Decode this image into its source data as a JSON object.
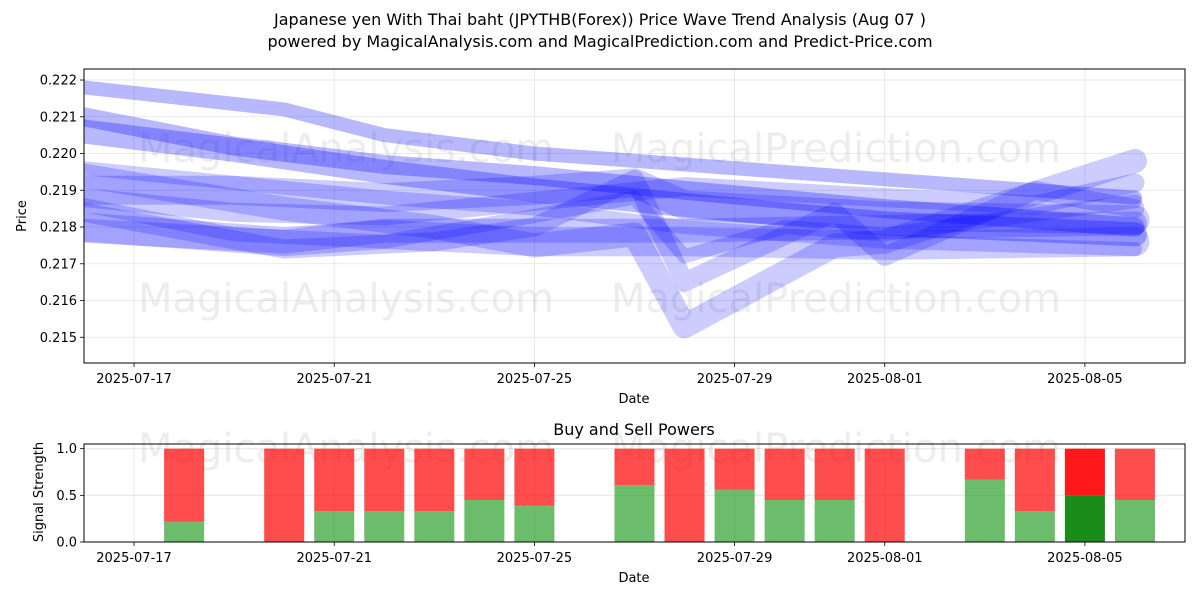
{
  "header": {
    "title": "Japanese yen With Thai baht (JPYTHB(Forex)) Price Wave Trend Analysis (Aug 07 )",
    "subtitle": "powered by MagicalAnalysis.com and MagicalPrediction.com and Predict-Price.com"
  },
  "watermarks": [
    "MagicalAnalysis.com",
    "MagicalPrediction.com"
  ],
  "colors": {
    "wave": "#0000ff",
    "buy": "#2ca02c",
    "sell": "#ff0000",
    "grid": "#b0b0b0"
  },
  "chart_data": [
    {
      "type": "area",
      "xlabel": "Date",
      "ylabel": "Price",
      "xlim": [
        "2025-07-16",
        "2025-08-07"
      ],
      "ylim": [
        0.2143,
        0.2223
      ],
      "x_ticks": [
        "2025-07-17",
        "2025-07-21",
        "2025-07-25",
        "2025-07-29",
        "2025-08-01",
        "2025-08-05"
      ],
      "y_ticks": [
        "0.215",
        "0.216",
        "0.217",
        "0.218",
        "0.219",
        "0.220",
        "0.221",
        "0.222"
      ],
      "grid": true,
      "series": [
        {
          "x": [
            "2025-07-16",
            "2025-07-20",
            "2025-07-22",
            "2025-07-25",
            "2025-07-28",
            "2025-08-01",
            "2025-08-06"
          ],
          "values": [
            0.2218,
            0.2212,
            0.2205,
            0.22,
            0.2197,
            0.2193,
            0.2188
          ]
        },
        {
          "x": [
            "2025-07-16",
            "2025-07-19",
            "2025-07-22",
            "2025-07-25",
            "2025-07-28",
            "2025-08-01",
            "2025-08-06"
          ],
          "values": [
            0.221,
            0.2202,
            0.2197,
            0.2194,
            0.219,
            0.2185,
            0.218
          ]
        },
        {
          "x": [
            "2025-07-16",
            "2025-07-19",
            "2025-07-22",
            "2025-07-25",
            "2025-07-28",
            "2025-08-01",
            "2025-08-06"
          ],
          "values": [
            0.2206,
            0.2201,
            0.2195,
            0.219,
            0.2186,
            0.2181,
            0.2178
          ]
        },
        {
          "x": [
            "2025-07-16",
            "2025-07-19",
            "2025-07-22",
            "2025-07-25",
            "2025-07-27",
            "2025-07-28",
            "2025-08-01",
            "2025-08-06"
          ],
          "values": [
            0.219,
            0.219,
            0.2188,
            0.219,
            0.2192,
            0.2186,
            0.2183,
            0.2182
          ]
        },
        {
          "x": [
            "2025-07-16",
            "2025-07-19",
            "2025-07-22",
            "2025-07-25",
            "2025-07-27",
            "2025-07-28",
            "2025-07-30",
            "2025-08-01",
            "2025-08-06"
          ],
          "values": [
            0.2186,
            0.2178,
            0.2176,
            0.2183,
            0.2188,
            0.2172,
            0.218,
            0.2178,
            0.2187
          ]
        },
        {
          "x": [
            "2025-07-16",
            "2025-07-20",
            "2025-07-23",
            "2025-07-25",
            "2025-07-27",
            "2025-07-28",
            "2025-07-31",
            "2025-08-01",
            "2025-08-04",
            "2025-08-06"
          ],
          "values": [
            0.2184,
            0.2174,
            0.2176,
            0.218,
            0.2193,
            0.2165,
            0.2184,
            0.2172,
            0.219,
            0.2185
          ]
        },
        {
          "x": [
            "2025-07-16",
            "2025-07-20",
            "2025-07-23",
            "2025-07-25",
            "2025-07-27",
            "2025-07-28",
            "2025-07-31",
            "2025-08-01",
            "2025-08-06"
          ],
          "values": [
            0.2194,
            0.2185,
            0.218,
            0.2175,
            0.2178,
            0.2153,
            0.2175,
            0.2176,
            0.2198
          ]
        },
        {
          "x": [
            "2025-07-16",
            "2025-07-20",
            "2025-07-22",
            "2025-07-25",
            "2025-07-28",
            "2025-08-01",
            "2025-08-06"
          ],
          "values": [
            0.218,
            0.2176,
            0.2178,
            0.2176,
            0.2176,
            0.2175,
            0.2176
          ]
        },
        {
          "x": [
            "2025-07-16",
            "2025-07-19",
            "2025-07-22",
            "2025-07-25",
            "2025-07-28",
            "2025-08-01",
            "2025-08-06"
          ],
          "values": [
            0.2196,
            0.2192,
            0.2188,
            0.2185,
            0.218,
            0.2176,
            0.2174
          ]
        },
        {
          "x": [
            "2025-07-16",
            "2025-07-19",
            "2025-07-22",
            "2025-07-25",
            "2025-07-28",
            "2025-08-01",
            "2025-08-04",
            "2025-08-06"
          ],
          "values": [
            0.2188,
            0.2184,
            0.2183,
            0.2187,
            0.2191,
            0.2188,
            0.2186,
            0.2192
          ]
        },
        {
          "x": [
            "2025-07-16",
            "2025-07-20",
            "2025-07-22",
            "2025-07-25",
            "2025-07-28",
            "2025-08-01",
            "2025-08-06"
          ],
          "values": [
            0.2179,
            0.2176,
            0.2179,
            0.2179,
            0.2179,
            0.218,
            0.2181
          ]
        }
      ]
    },
    {
      "type": "bar",
      "title": "Buy and Sell Powers",
      "xlabel": "Date",
      "ylabel": "Signal Strength",
      "xlim": [
        "2025-07-16",
        "2025-08-07"
      ],
      "ylim": [
        0,
        1.05
      ],
      "x_ticks": [
        "2025-07-17",
        "2025-07-21",
        "2025-07-25",
        "2025-07-29",
        "2025-08-01",
        "2025-08-05"
      ],
      "y_ticks": [
        "0.0",
        "0.5",
        "1.0"
      ],
      "categories": [
        "2025-07-18",
        "2025-07-20",
        "2025-07-21",
        "2025-07-22",
        "2025-07-23",
        "2025-07-24",
        "2025-07-25",
        "2025-07-27",
        "2025-07-28",
        "2025-07-29",
        "2025-07-30",
        "2025-07-31",
        "2025-08-01",
        "2025-08-03",
        "2025-08-04",
        "2025-08-05",
        "2025-08-06"
      ],
      "series": [
        {
          "name": "Buy",
          "values": [
            0.22,
            0.0,
            0.33,
            0.33,
            0.33,
            0.45,
            0.39,
            0.61,
            0.0,
            0.56,
            0.45,
            0.45,
            0.0,
            0.67,
            0.33,
            0.5,
            0.45
          ]
        },
        {
          "name": "Sell",
          "values": [
            0.78,
            1.0,
            0.67,
            0.67,
            0.67,
            0.55,
            0.61,
            0.39,
            1.0,
            0.44,
            0.55,
            0.55,
            1.0,
            0.33,
            0.67,
            0.5,
            0.55
          ]
        }
      ],
      "highlight_category": "2025-08-05"
    }
  ]
}
